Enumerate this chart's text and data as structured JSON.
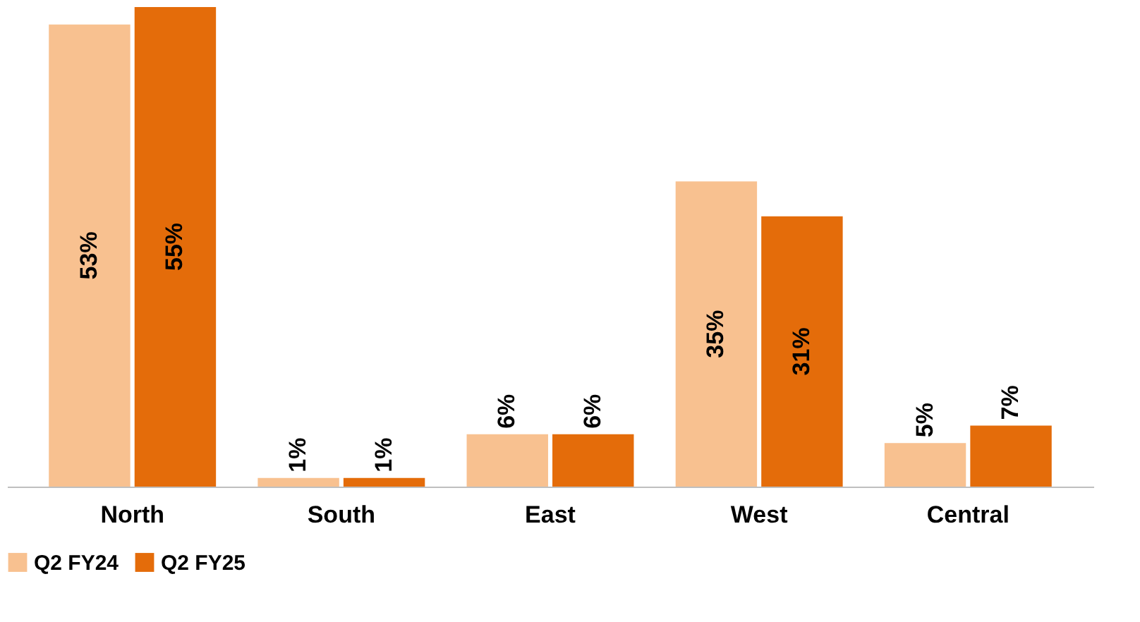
{
  "chart_data": {
    "type": "bar",
    "categories": [
      "North",
      "South",
      "East",
      "West",
      "Central"
    ],
    "series": [
      {
        "name": "Q2 FY24",
        "color": "#f8c190",
        "values": [
          53,
          1,
          6,
          35,
          5
        ],
        "value_labels": [
          "53%",
          "1%",
          "6%",
          "35%",
          "5%"
        ]
      },
      {
        "name": "Q2 FY25",
        "color": "#e46c0a",
        "values": [
          55,
          1,
          6,
          31,
          7
        ],
        "value_labels": [
          "55%",
          "1%",
          "6%",
          "31%",
          "7%"
        ]
      }
    ],
    "legend": "bottom",
    "grid": false,
    "tick_labels": "x"
  }
}
